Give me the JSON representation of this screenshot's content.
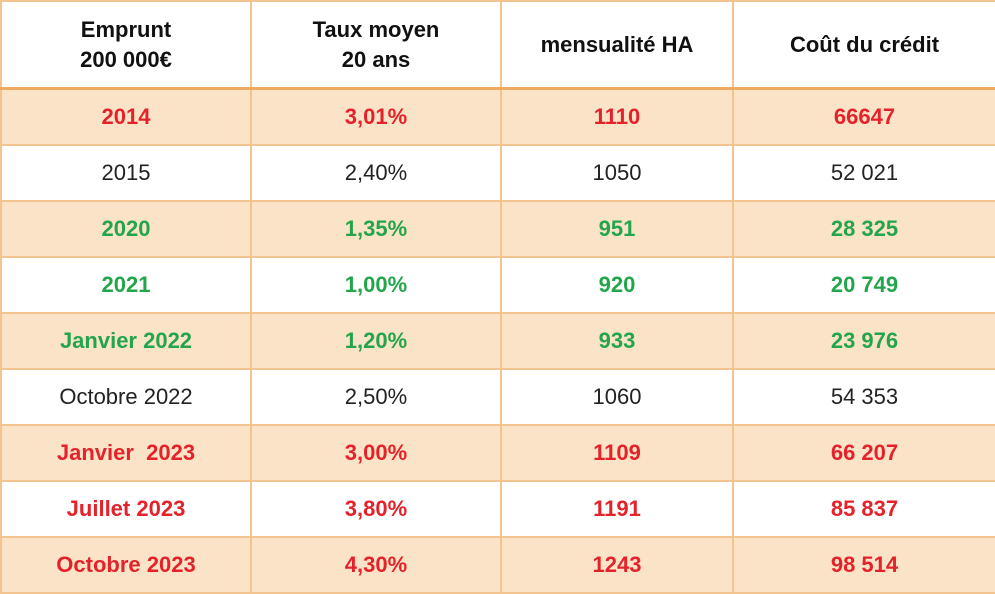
{
  "table": {
    "header": [
      [
        "Emprunt",
        "200 000€"
      ],
      [
        "Taux moyen",
        "20 ans"
      ],
      [
        "mensualité HA"
      ],
      [
        "Coût du crédit"
      ]
    ],
    "rows": [
      [
        "2014",
        "3,01%",
        "1110",
        "66647"
      ],
      [
        "2015",
        "2,40%",
        "1050",
        "52 021"
      ],
      [
        "2020",
        "1,35%",
        "951",
        "28 325"
      ],
      [
        "2021",
        "1,00%",
        "920",
        "20 749"
      ],
      [
        "Janvier 2022",
        "1,20%",
        "933",
        "23 976"
      ],
      [
        "Octobre 2022",
        "2,50%",
        "1060",
        "54 353"
      ],
      [
        "Janvier  2023",
        "3,00%",
        "1109",
        "66 207"
      ],
      [
        "Juillet 2023",
        "3,80%",
        "1191",
        "85 837"
      ],
      [
        "Octobre 2023",
        "4,30%",
        "1243",
        "98 514"
      ]
    ]
  }
}
